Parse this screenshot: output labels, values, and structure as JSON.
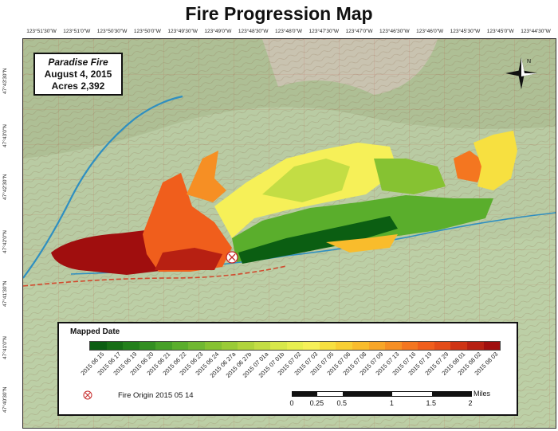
{
  "title": "Fire Progression Map",
  "info": {
    "fire_name": "Paradise Fire",
    "date": "August 4, 2015",
    "acres": "Acres 2,392"
  },
  "longitude_labels": [
    "123°51'30\"W",
    "123°51'0\"W",
    "123°50'30\"W",
    "123°50'0\"W",
    "123°49'30\"W",
    "123°49'0\"W",
    "123°48'30\"W",
    "123°48'0\"W",
    "123°47'30\"W",
    "123°47'0\"W",
    "123°46'30\"W",
    "123°46'0\"W",
    "123°45'30\"W",
    "123°45'0\"W",
    "123°44'30\"W"
  ],
  "latitude_labels": [
    "47°43'30\"N",
    "47°43'0\"N",
    "47°42'30\"N",
    "47°42'0\"N",
    "47°41'30\"N",
    "47°41'0\"N",
    "47°40'30\"N"
  ],
  "legend": {
    "title": "Mapped Date",
    "dates": [
      "2015 06 15",
      "2015 06 17",
      "2015 06 19",
      "2015 06 20",
      "2015 06 21",
      "2015 06 22",
      "2015 06 23",
      "2015 06 24",
      "2015 06 27a",
      "2015 06 27b",
      "2015 07 01a",
      "2015 07 01b",
      "2015 07 02",
      "2015 07 03",
      "2015 07 05",
      "2015 07 06",
      "2015 07 08",
      "2015 07 09",
      "2015 07 13",
      "2015 07 16",
      "2015 07 19",
      "2015 07 29",
      "2015 08 01",
      "2015 08 02",
      "2015 08 03"
    ],
    "colors": [
      "#0b5e12",
      "#176e16",
      "#23801c",
      "#338f22",
      "#46a028",
      "#5aae2c",
      "#70b832",
      "#86c232",
      "#9acb36",
      "#b0d43c",
      "#c3dd44",
      "#d8e84a",
      "#e8ef50",
      "#f6f058",
      "#f7e040",
      "#f8cf34",
      "#f9bc2c",
      "#f8a628",
      "#f68f24",
      "#f47620",
      "#f05e1c",
      "#e44c18",
      "#cf3414",
      "#b72012",
      "#a00e0e"
    ],
    "origin_label": "Fire Origin 2015 05 14",
    "scale_labels": [
      "0",
      "0.25",
      "0.5",
      "1",
      "1.5",
      "2"
    ],
    "scale_unit": "Miles"
  },
  "compass": {
    "north": "N"
  },
  "colors": {
    "map_base": "#b7c9a1",
    "river": "#2f8fc0",
    "road": "#d24a2e",
    "fire_early": "#0b5e12",
    "fire_mid": "#f6f058",
    "fire_late": "#a00e0e"
  }
}
